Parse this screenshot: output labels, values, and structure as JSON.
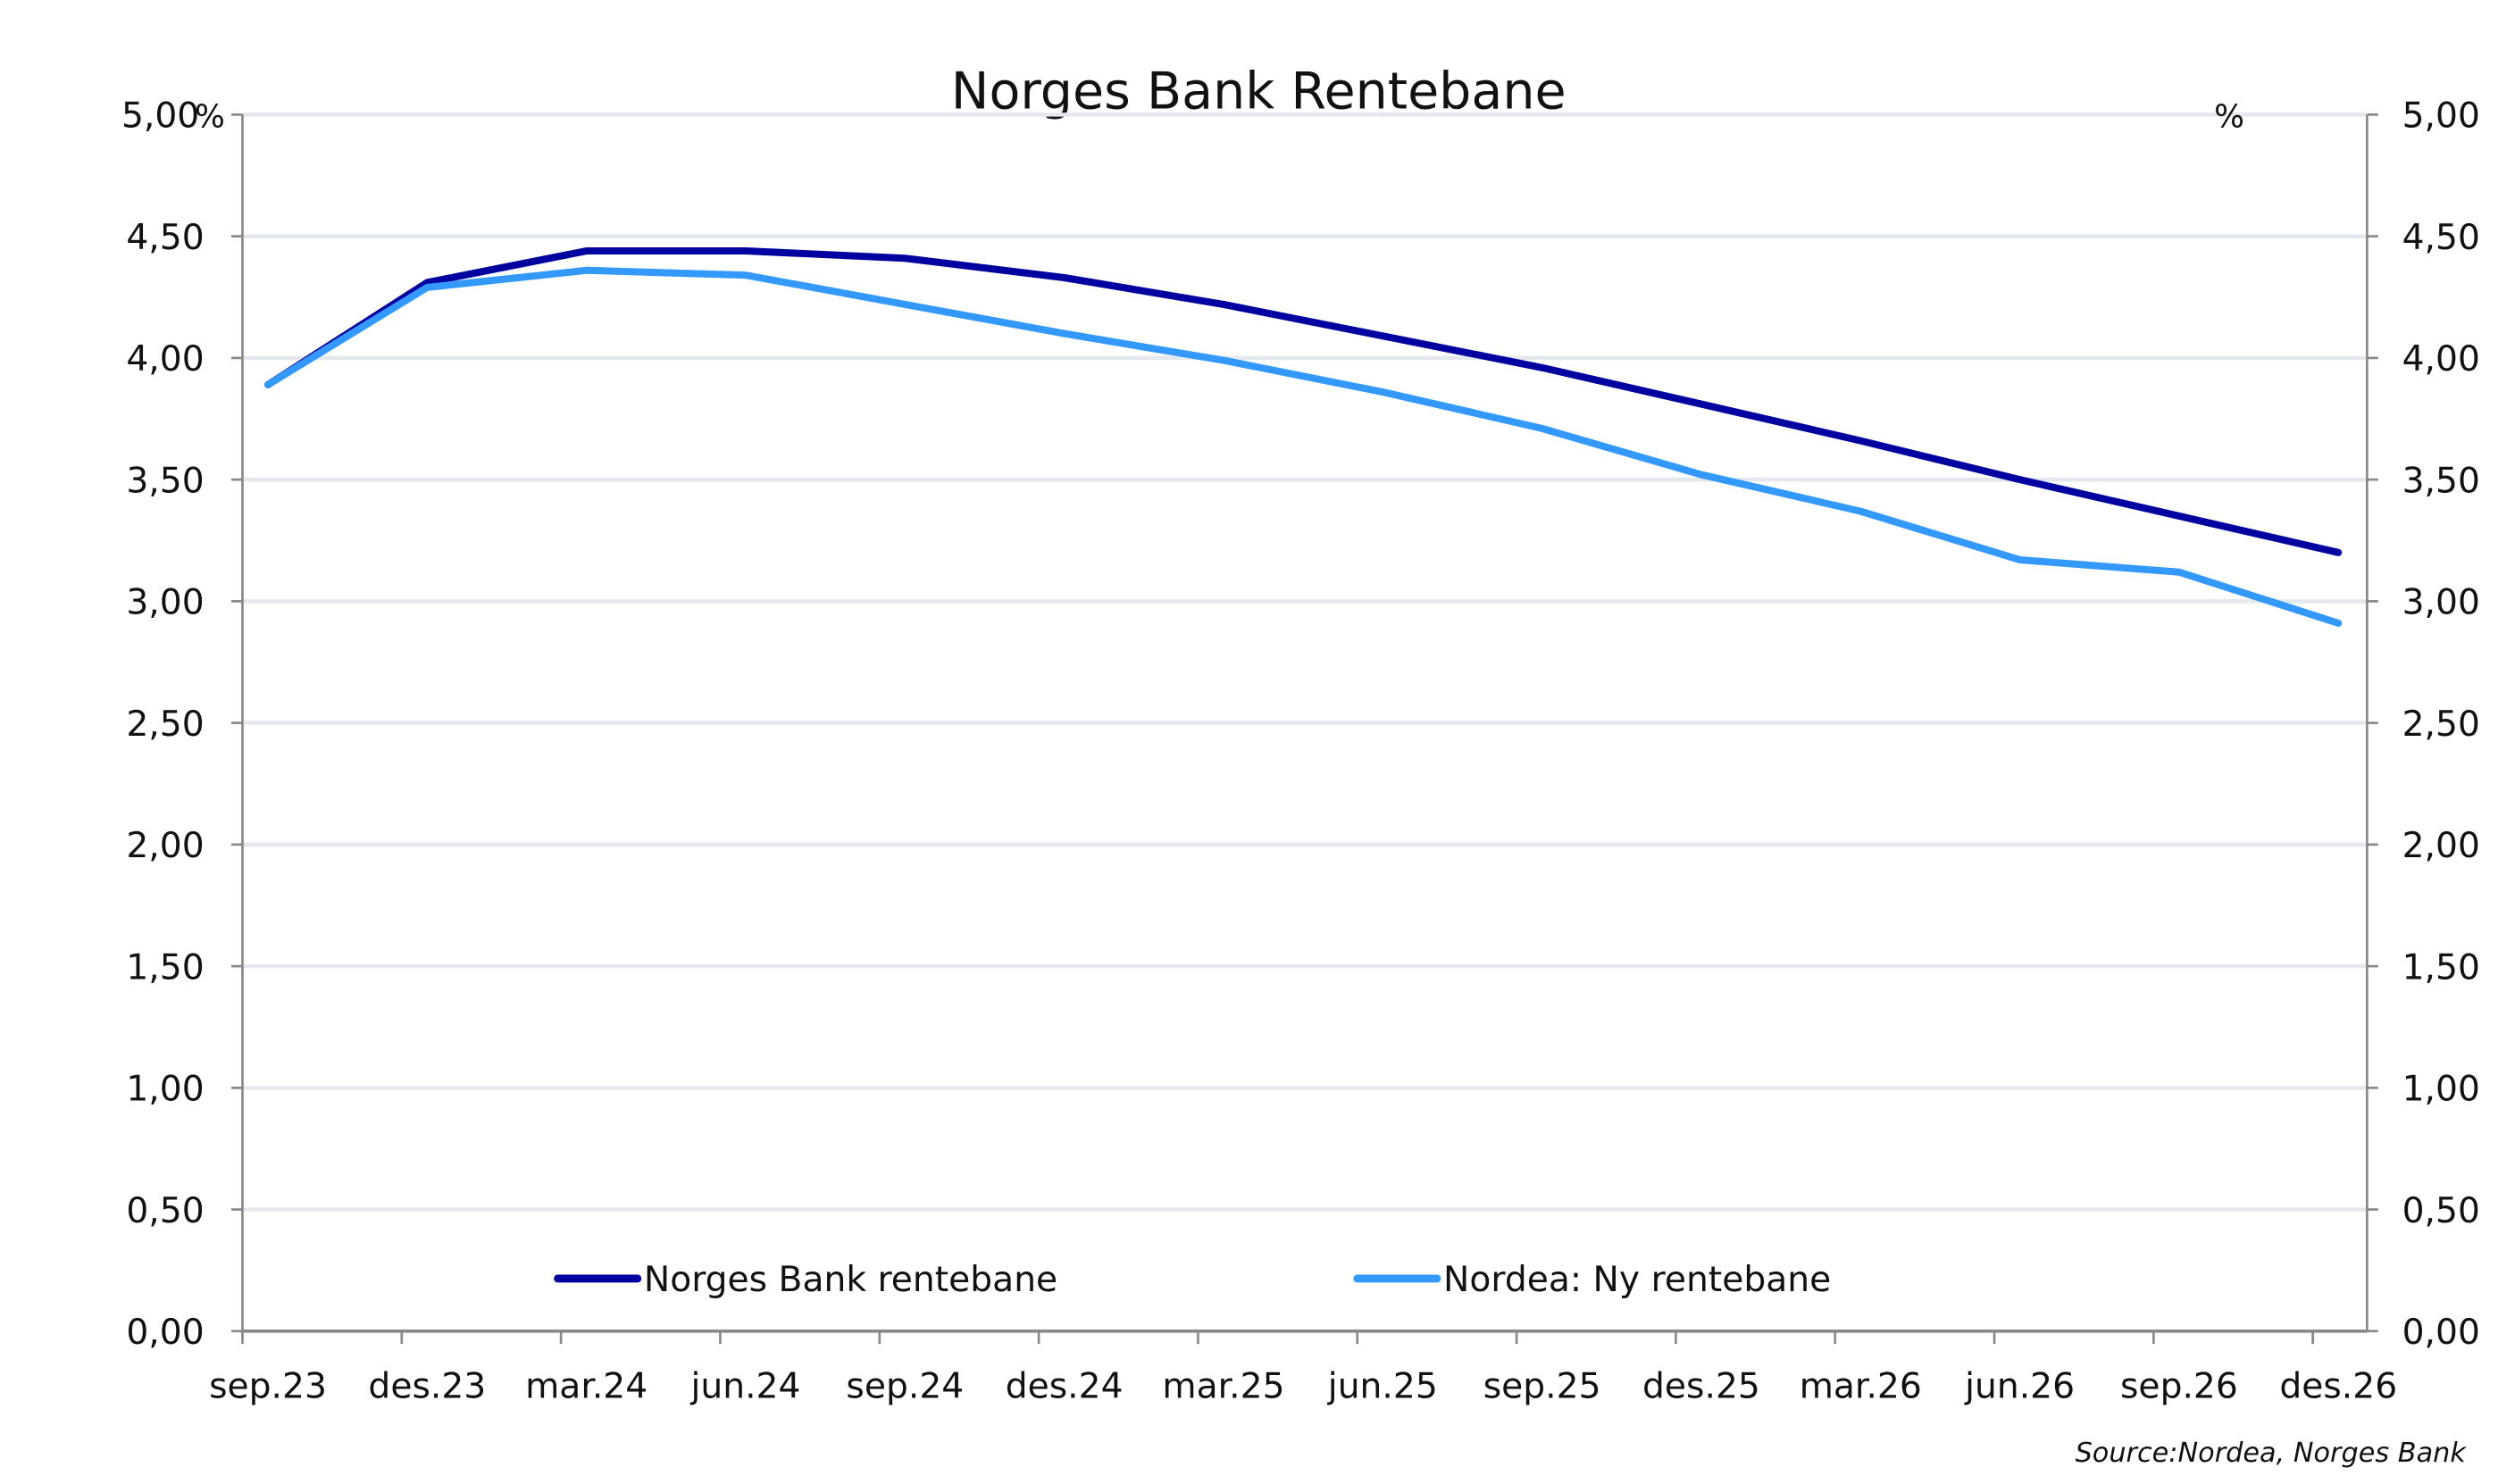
{
  "chart_data": {
    "type": "line",
    "title": "Norges Bank Rentebane",
    "xlabel": "",
    "ylabel": "%",
    "ylabel_right": "%",
    "ylim": [
      0,
      5
    ],
    "yticks": [
      "0,00",
      "0,50",
      "1,00",
      "1,50",
      "2,00",
      "2,50",
      "3,00",
      "3,50",
      "4,00",
      "4,50",
      "5,00"
    ],
    "categories": [
      "sep.23",
      "des.23",
      "mar.24",
      "jun.24",
      "sep.24",
      "des.24",
      "mar.25",
      "jun.25",
      "sep.25",
      "des.25",
      "mar.26",
      "jun.26",
      "sep.26",
      "des.26"
    ],
    "series": [
      {
        "name": "Norges Bank rentebane",
        "color": "#0000A0",
        "values": [
          3.89,
          4.31,
          4.44,
          4.44,
          4.41,
          4.33,
          4.22,
          4.09,
          3.96,
          3.81,
          3.66,
          3.5,
          3.35,
          3.2
        ]
      },
      {
        "name": "Nordea: Ny rentebane",
        "color": "#3399FF",
        "values": [
          3.89,
          4.29,
          4.36,
          4.34,
          4.22,
          4.1,
          3.99,
          3.86,
          3.71,
          3.52,
          3.37,
          3.17,
          3.12,
          2.91
        ]
      }
    ],
    "grid": true,
    "legend_position": "bottom-inside",
    "source": "Source:Nordea, Norges Bank"
  }
}
